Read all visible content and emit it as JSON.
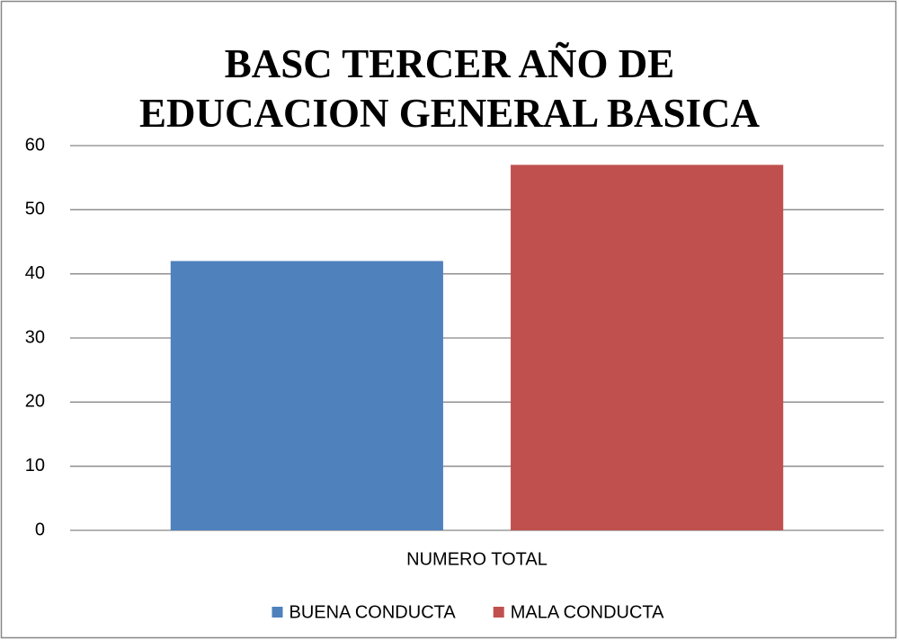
{
  "chart_data": {
    "type": "bar",
    "title": "BASC TERCER AÑO DE EDUCACION GENERAL BASICA",
    "categories": [
      "NUMERO TOTAL"
    ],
    "series": [
      {
        "name": "BUENA CONDUCTA",
        "color": "#4f81bd",
        "values": [
          42
        ]
      },
      {
        "name": "MALA CONDUCTA",
        "color": "#c0504d",
        "values": [
          57
        ]
      }
    ],
    "ylim": [
      0,
      60
    ],
    "yticks": [
      0,
      10,
      20,
      30,
      40,
      50,
      60
    ],
    "grid": true,
    "legend": "bottom"
  }
}
